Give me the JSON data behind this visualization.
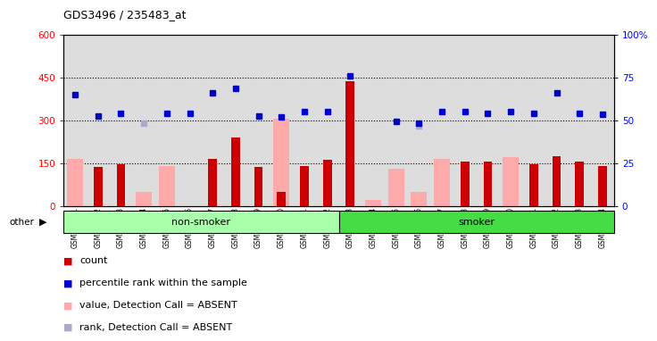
{
  "title": "GDS3496 / 235483_at",
  "samples": [
    "GSM219241",
    "GSM219242",
    "GSM219243",
    "GSM219244",
    "GSM219245",
    "GSM219246",
    "GSM219247",
    "GSM219248",
    "GSM219249",
    "GSM219250",
    "GSM219251",
    "GSM219252",
    "GSM219253",
    "GSM219254",
    "GSM219255",
    "GSM219256",
    "GSM219257",
    "GSM219258",
    "GSM219259",
    "GSM219260",
    "GSM219261",
    "GSM219262",
    "GSM219263",
    "GSM219264"
  ],
  "count": [
    null,
    135,
    145,
    null,
    null,
    null,
    165,
    240,
    135,
    50,
    140,
    160,
    435,
    null,
    null,
    null,
    null,
    155,
    155,
    null,
    145,
    175,
    155,
    140
  ],
  "percentile_rank": [
    390,
    315,
    325,
    null,
    325,
    325,
    395,
    410,
    315,
    310,
    330,
    330,
    455,
    null,
    295,
    290,
    330,
    330,
    325,
    330,
    325,
    395,
    325,
    320
  ],
  "absent_value": [
    165,
    null,
    null,
    50,
    140,
    null,
    null,
    null,
    null,
    305,
    null,
    null,
    null,
    20,
    130,
    50,
    165,
    null,
    null,
    170,
    null,
    null,
    null,
    null
  ],
  "absent_rank": [
    null,
    null,
    null,
    290,
    null,
    null,
    null,
    null,
    null,
    null,
    null,
    null,
    null,
    null,
    null,
    280,
    null,
    null,
    null,
    null,
    null,
    null,
    null,
    null
  ],
  "non_smoker_count": 12,
  "smoker_count": 12,
  "ylim_left": [
    0,
    600
  ],
  "ylim_right": [
    0,
    100
  ],
  "yticks_left": [
    0,
    150,
    300,
    450,
    600
  ],
  "yticks_right": [
    0,
    25,
    50,
    75,
    100
  ],
  "bar_color": "#cc0000",
  "rank_color": "#0000cc",
  "absent_value_color": "#ffaaaa",
  "absent_rank_color": "#aaaacc",
  "bg_color": "#dddddd",
  "non_smoker_color": "#aaffaa",
  "smoker_color": "#44dd44",
  "hline_color": "black",
  "hline_style": "dotted",
  "hline_vals": [
    150,
    300,
    450
  ],
  "legend_items": [
    {
      "marker_color": "#cc0000",
      "label": "count"
    },
    {
      "marker_color": "#0000cc",
      "label": "percentile rank within the sample"
    },
    {
      "marker_color": "#ffaaaa",
      "label": "value, Detection Call = ABSENT"
    },
    {
      "marker_color": "#aaaacc",
      "label": "rank, Detection Call = ABSENT"
    }
  ]
}
